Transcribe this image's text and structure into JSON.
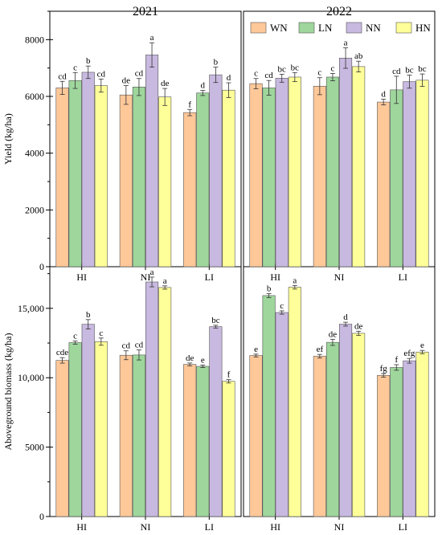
{
  "chart_data": {
    "type": "bar",
    "series_names": [
      "WN",
      "LN",
      "NN",
      "HN"
    ],
    "series_colors": [
      "#FFC899",
      "#9ED69C",
      "#C8B9E0",
      "#FFFF99"
    ],
    "categories": [
      "HI",
      "NI",
      "LI"
    ],
    "years": [
      "2021",
      "2022"
    ],
    "legend_position": "top-right of 2022 yield panel",
    "rows": [
      {
        "ylabel": "Yield (kg/ha)",
        "ylim": [
          0,
          9000
        ],
        "yticks": [
          0,
          2000,
          4000,
          6000,
          8000
        ],
        "ytick_labels": [
          "0",
          "2000",
          "4000",
          "6000",
          "8000"
        ],
        "panels": [
          {
            "year": "2021",
            "series": [
              {
                "name": "WN",
                "values": [
                  6300,
                  6050,
                  5430
                ],
                "errors": [
                  230,
                  330,
                  110
                ],
                "letters": [
                  "cd",
                  "de",
                  "f"
                ]
              },
              {
                "name": "LN",
                "values": [
                  6560,
                  6330,
                  6120
                ],
                "errors": [
                  280,
                  300,
                  90
                ],
                "letters": [
                  "c",
                  "cd",
                  "d"
                ]
              },
              {
                "name": "NN",
                "values": [
                  6850,
                  7460,
                  6760
                ],
                "errors": [
                  220,
                  430,
                  270
                ],
                "letters": [
                  "b",
                  "a",
                  "b"
                ]
              },
              {
                "name": "HN",
                "values": [
                  6380,
                  5980,
                  6220
                ],
                "errors": [
                  230,
                  300,
                  260
                ],
                "letters": [
                  "cd",
                  "de",
                  "d"
                ]
              }
            ]
          },
          {
            "year": "2022",
            "series": [
              {
                "name": "WN",
                "values": [
                  6450,
                  6360,
                  5800
                ],
                "errors": [
                  180,
                  300,
                  100
                ],
                "letters": [
                  "c",
                  "c",
                  "d"
                ]
              },
              {
                "name": "LN",
                "values": [
                  6300,
                  6680,
                  6230
                ],
                "errors": [
                  260,
                  130,
                  480
                ],
                "letters": [
                  "cd",
                  "c",
                  "cd"
                ]
              },
              {
                "name": "NN",
                "values": [
                  6640,
                  7350,
                  6520
                ],
                "errors": [
                  140,
                  360,
                  230
                ],
                "letters": [
                  "bc",
                  "a",
                  "bc"
                ]
              },
              {
                "name": "HN",
                "values": [
                  6680,
                  7050,
                  6570
                ],
                "errors": [
                  160,
                  190,
                  220
                ],
                "letters": [
                  "bc",
                  "ab",
                  "bc"
                ]
              }
            ]
          }
        ]
      },
      {
        "ylabel": "Aboveground biomass (kg/ha)",
        "ylim": [
          0,
          18000
        ],
        "yticks": [
          0,
          5000,
          10000,
          15000
        ],
        "ytick_labels": [
          "0",
          "5000",
          "10,000",
          "15,000"
        ],
        "panels": [
          {
            "year": "2021",
            "series": [
              {
                "name": "WN",
                "values": [
                  11250,
                  11620,
                  10960
                ],
                "errors": [
                  200,
                  320,
                  100
                ],
                "letters": [
                  "cde",
                  "cd",
                  "de"
                ]
              },
              {
                "name": "LN",
                "values": [
                  12530,
                  11640,
                  10820
                ],
                "errors": [
                  110,
                  360,
                  90
                ],
                "letters": [
                  "c",
                  "cd",
                  "e"
                ]
              },
              {
                "name": "NN",
                "values": [
                  13850,
                  16900,
                  13680
                ],
                "errors": [
                  340,
                  350,
                  100
                ],
                "letters": [
                  "b",
                  "a",
                  "bc"
                ]
              },
              {
                "name": "HN",
                "values": [
                  12600,
                  16500,
                  9740
                ],
                "errors": [
                  260,
                  120,
                  120
                ],
                "letters": [
                  "c",
                  "a",
                  "f"
                ]
              }
            ]
          },
          {
            "year": "2022",
            "series": [
              {
                "name": "WN",
                "values": [
                  11600,
                  11550,
                  10170
                ],
                "errors": [
                  100,
                  130,
                  130
                ],
                "letters": [
                  "e",
                  "ef",
                  "fg"
                ]
              },
              {
                "name": "LN",
                "values": [
                  15920,
                  12550,
                  10740
                ],
                "errors": [
                  140,
                  220,
                  200
                ],
                "letters": [
                  "b",
                  "de",
                  "f"
                ]
              },
              {
                "name": "NN",
                "values": [
                  14700,
                  13860,
                  11220
                ],
                "errors": [
                  120,
                  140,
                  170
                ],
                "letters": [
                  "c",
                  "d",
                  "efg"
                ]
              },
              {
                "name": "HN",
                "values": [
                  16520,
                  13200,
                  11850
                ],
                "errors": [
                  130,
                  150,
                  120
                ],
                "letters": [
                  "a",
                  "de",
                  "e"
                ]
              }
            ]
          }
        ]
      }
    ]
  }
}
